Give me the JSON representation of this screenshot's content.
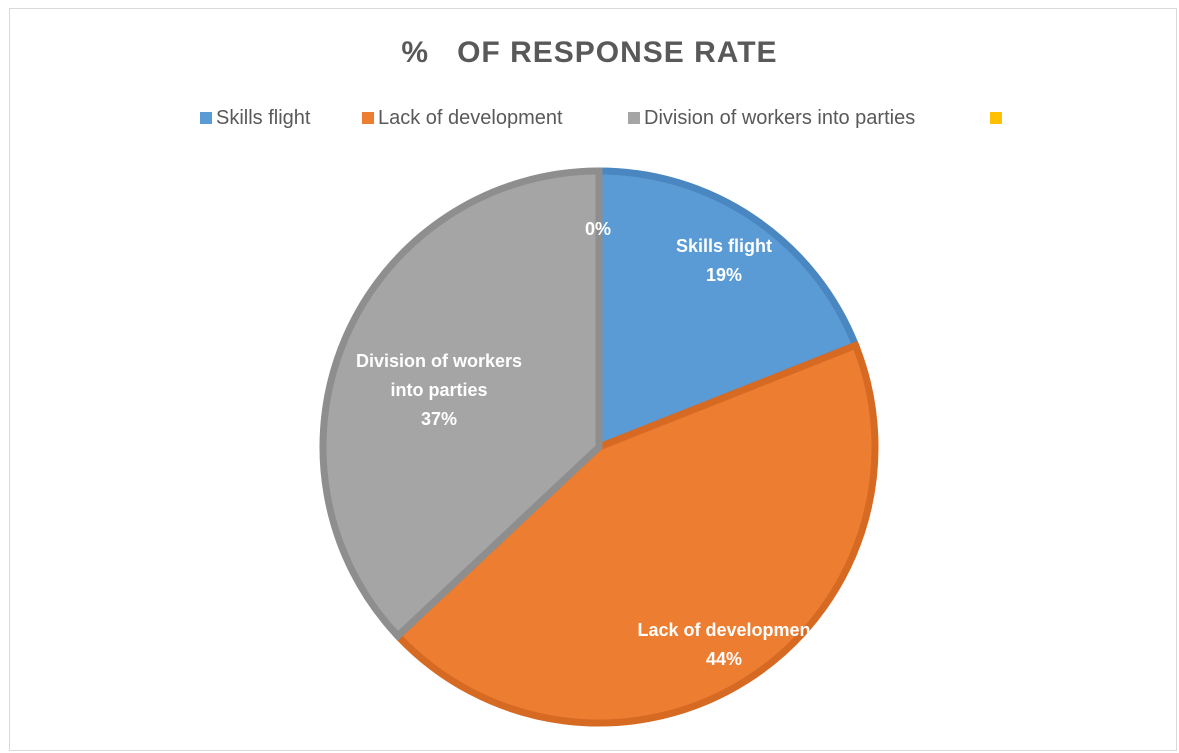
{
  "chart_data": {
    "type": "pie",
    "title": "%   OF RESPONSE RATE",
    "legend_position": "top",
    "slices": [
      {
        "label": "Skills flight",
        "value": 19,
        "value_text": "19%",
        "color": "#5B9BD5",
        "edge": "#4A86C0"
      },
      {
        "label": "Lack of development",
        "value": 44,
        "value_text": "44%",
        "color": "#ED7D31",
        "edge": "#D66A23"
      },
      {
        "label": "Division of workers into parties",
        "value": 37,
        "value_text": "37%",
        "color": "#A5A5A5",
        "edge": "#8E8E8E"
      },
      {
        "label": "",
        "value": 0,
        "value_text": "0%",
        "color": "#FFC000",
        "edge": "#E0A800"
      }
    ],
    "data_labels": [
      {
        "lines": [
          "Skills flight",
          "19%"
        ],
        "color": "#ffffff"
      },
      {
        "lines": [
          "Lack of developmen",
          "44%"
        ],
        "color": "#ffffff"
      },
      {
        "lines": [
          "Division of workers",
          "into parties",
          "37%"
        ],
        "color": "#ffffff"
      },
      {
        "lines": [
          "0%"
        ],
        "color": "#ffffff"
      }
    ]
  }
}
